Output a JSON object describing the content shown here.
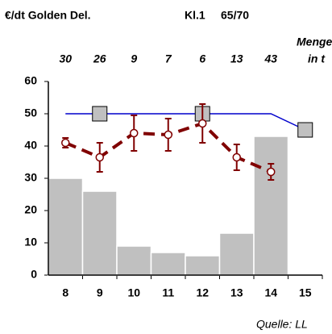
{
  "chart_data": {
    "type": "combo",
    "title": "€/dt  Golden Del.",
    "class_label": "Kl.1",
    "size_label": "65/70",
    "quantity_label": [
      "Menge",
      "in t"
    ],
    "source": "Quelle: LL",
    "categories": [
      "8",
      "9",
      "10",
      "11",
      "12",
      "13",
      "14",
      "15"
    ],
    "ylim": [
      0,
      60
    ],
    "yticks": [
      0,
      10,
      20,
      30,
      40,
      50,
      60
    ],
    "grid": false,
    "series": [
      {
        "kind": "bar",
        "color": "#c0c0c0",
        "values": [
          30,
          26,
          9,
          7,
          6,
          13,
          43,
          null
        ]
      },
      {
        "kind": "line",
        "color": "#0000cc",
        "values": [
          50,
          50,
          50,
          50,
          50,
          50,
          50,
          45
        ]
      },
      {
        "kind": "square",
        "color": "#c0c0c0",
        "values": [
          null,
          50,
          null,
          null,
          50,
          null,
          null,
          45
        ]
      },
      {
        "kind": "errorline",
        "color": "#800000",
        "dashed": true,
        "values": [
          41,
          36.5,
          44,
          43.5,
          47,
          36.5,
          32,
          null
        ],
        "errors": [
          1.5,
          4.5,
          5.5,
          5,
          6,
          4,
          2.5,
          null
        ]
      }
    ]
  }
}
